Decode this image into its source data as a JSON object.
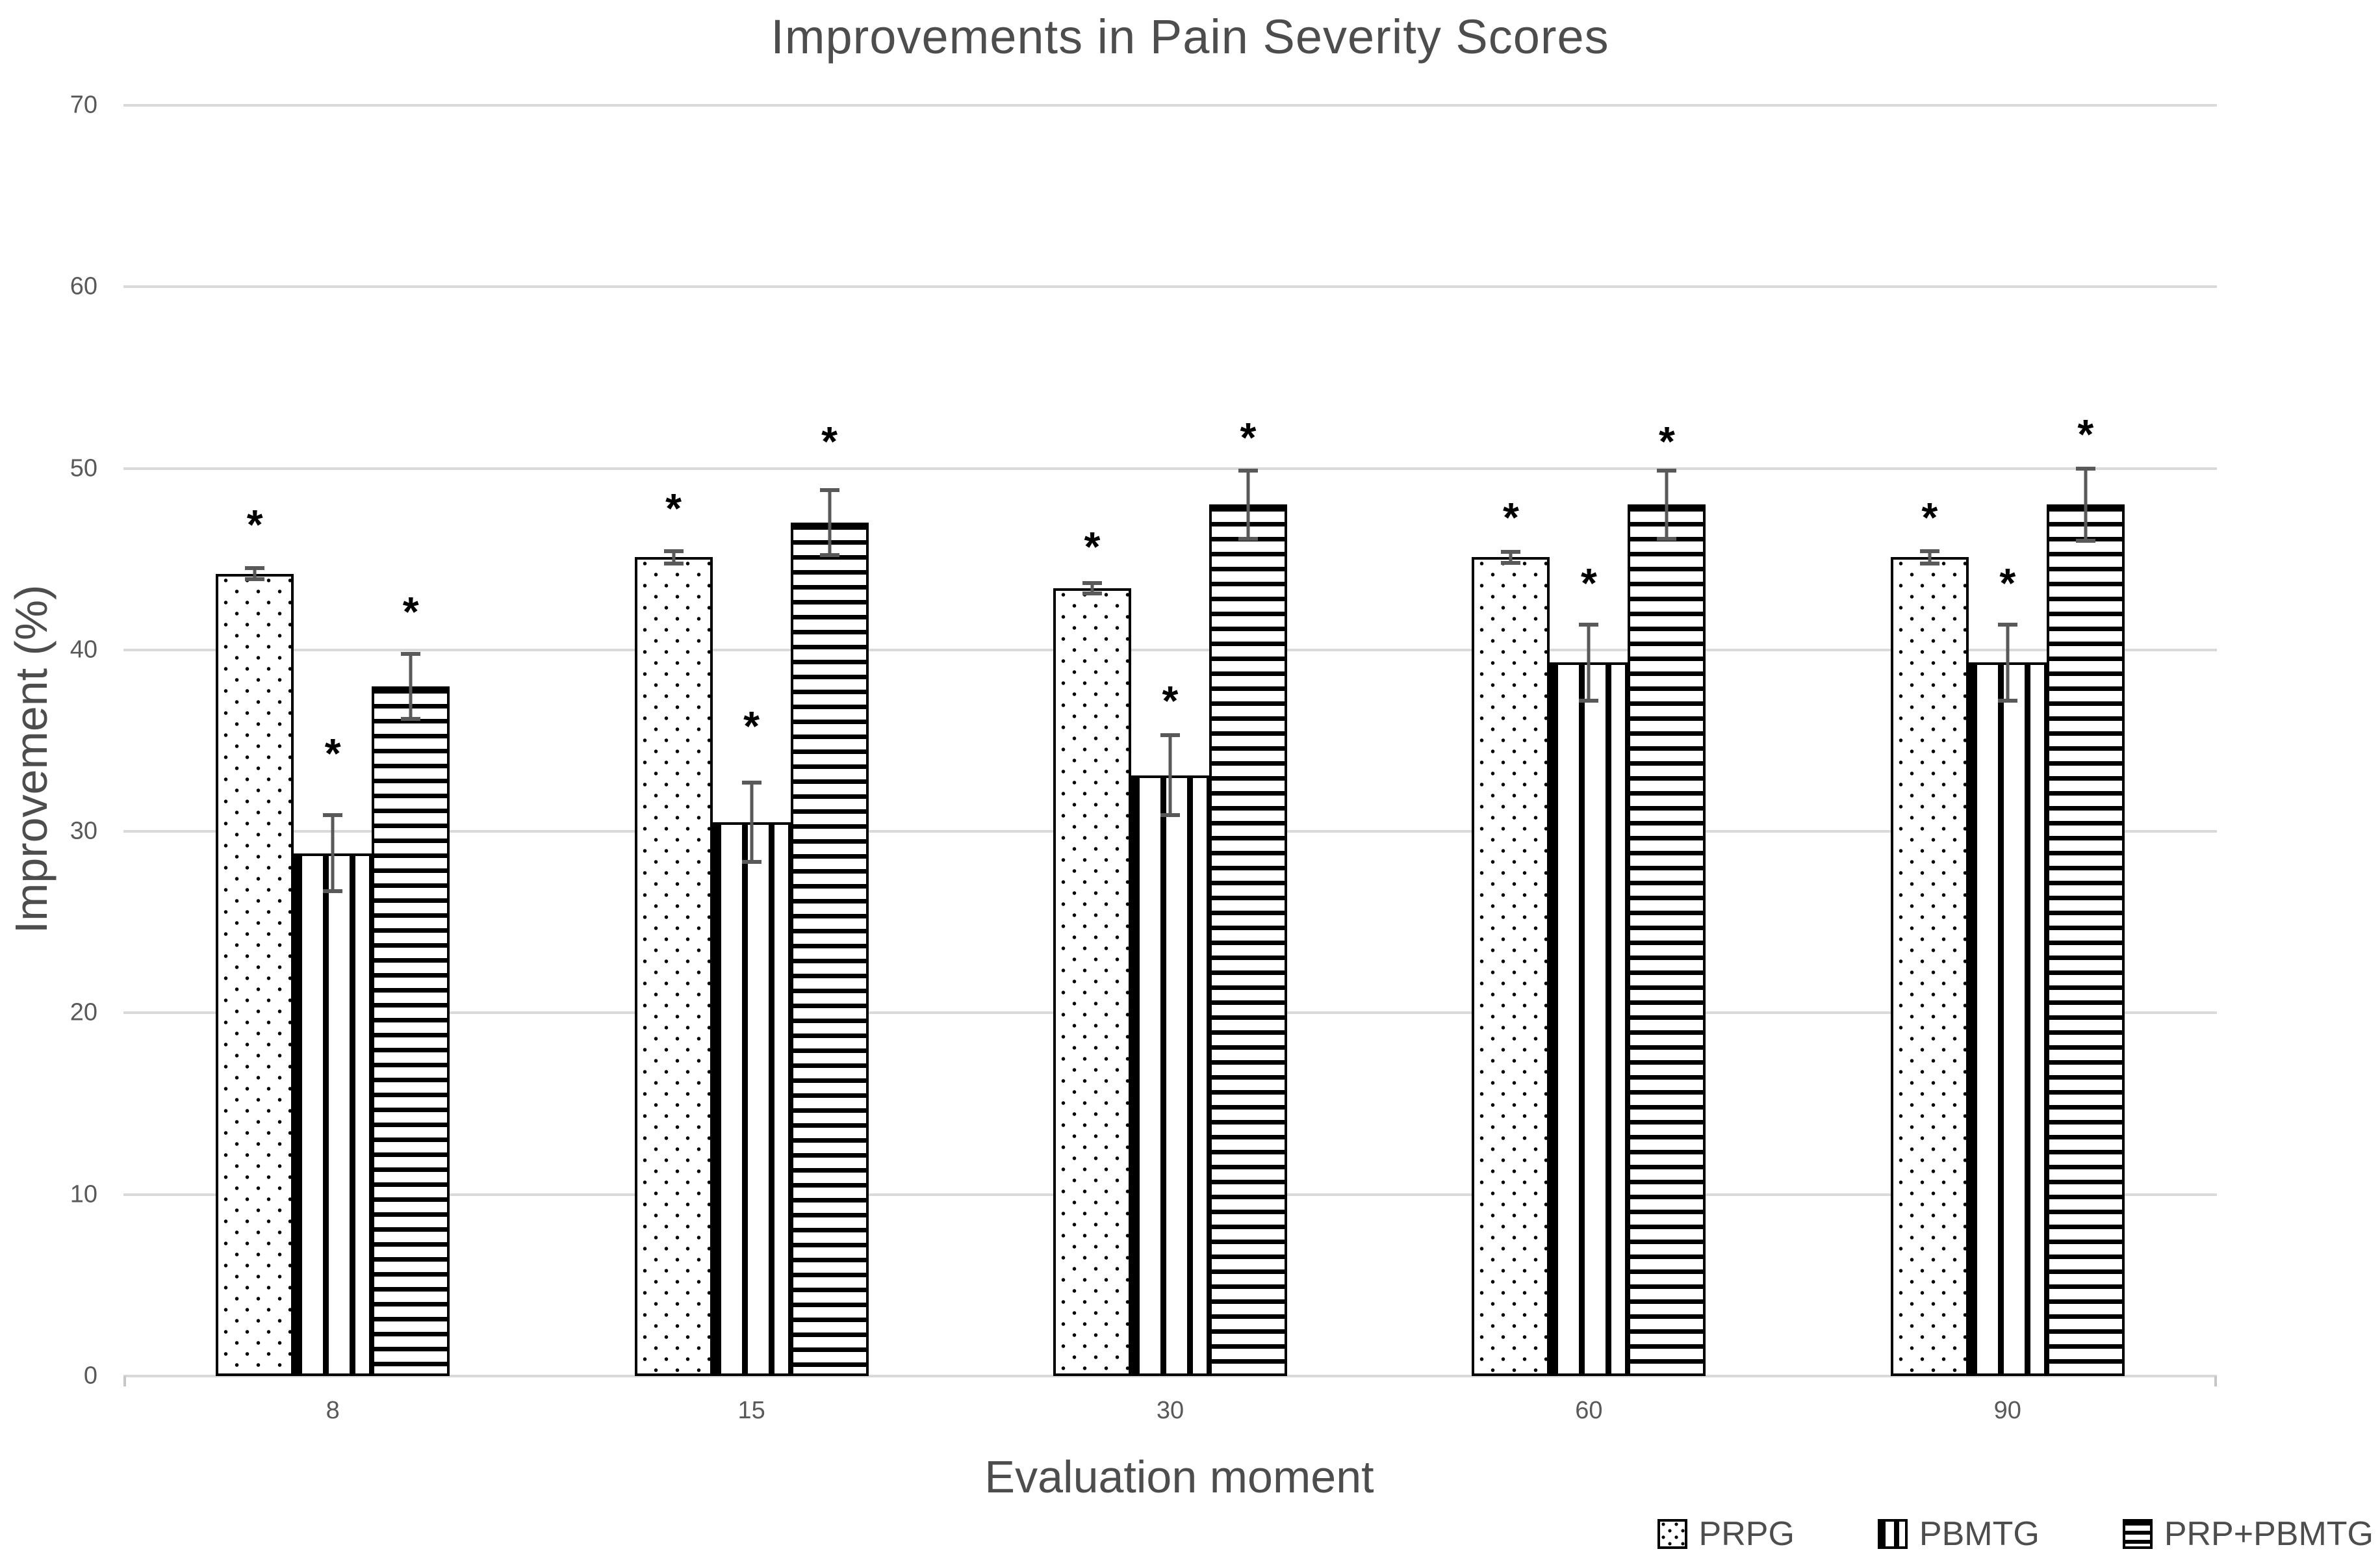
{
  "chart_data": {
    "type": "bar",
    "title": "Improvements in Pain Severity Scores",
    "xlabel": "Evaluation moment",
    "ylabel": "Improvement (%)",
    "ylim": [
      0,
      70
    ],
    "yticks": [
      0,
      10,
      20,
      30,
      40,
      50,
      60,
      70
    ],
    "categories": [
      "8",
      "15",
      "30",
      "60",
      "90"
    ],
    "grid": true,
    "legend_position": "bottom-right",
    "sig_marker": "*",
    "series": [
      {
        "name": "PRPG",
        "pattern": "dots",
        "values": [
          44.2,
          45.1,
          43.4,
          45.1,
          45.1
        ],
        "errors": [
          0.4,
          0.45,
          0.4,
          0.4,
          0.45
        ],
        "significant": [
          true,
          true,
          true,
          true,
          true
        ],
        "sig_y": [
          47.4,
          48.3,
          46.2,
          47.8,
          47.8
        ]
      },
      {
        "name": "PBMTG",
        "pattern": "vertical-stripes",
        "values": [
          28.8,
          30.5,
          33.1,
          39.3,
          39.3
        ],
        "errors": [
          2.2,
          2.3,
          2.3,
          2.2,
          2.2
        ],
        "significant": [
          true,
          true,
          true,
          true,
          true
        ],
        "sig_y": [
          34.8,
          36.3,
          37.7,
          44.2,
          44.2
        ]
      },
      {
        "name": "PRP+PBMTG",
        "pattern": "horizontal-stripes",
        "values": [
          38.0,
          47.0,
          48.0,
          48.0,
          48.0
        ],
        "errors": [
          1.9,
          1.9,
          2.0,
          2.0,
          2.1
        ],
        "significant": [
          true,
          true,
          true,
          true,
          true
        ],
        "sig_y": [
          42.6,
          52.0,
          52.2,
          52.0,
          52.4
        ]
      }
    ],
    "colors": {
      "background": "#ffffff",
      "bar_fill": "#ffffff",
      "bar_border": "#000000",
      "pattern_ink": "#000000",
      "gridline": "#d9d9d9",
      "text": "#4d4d4d",
      "tick_text": "#595959",
      "error_bar": "#595959",
      "sig_marker_color": "#000000"
    }
  }
}
